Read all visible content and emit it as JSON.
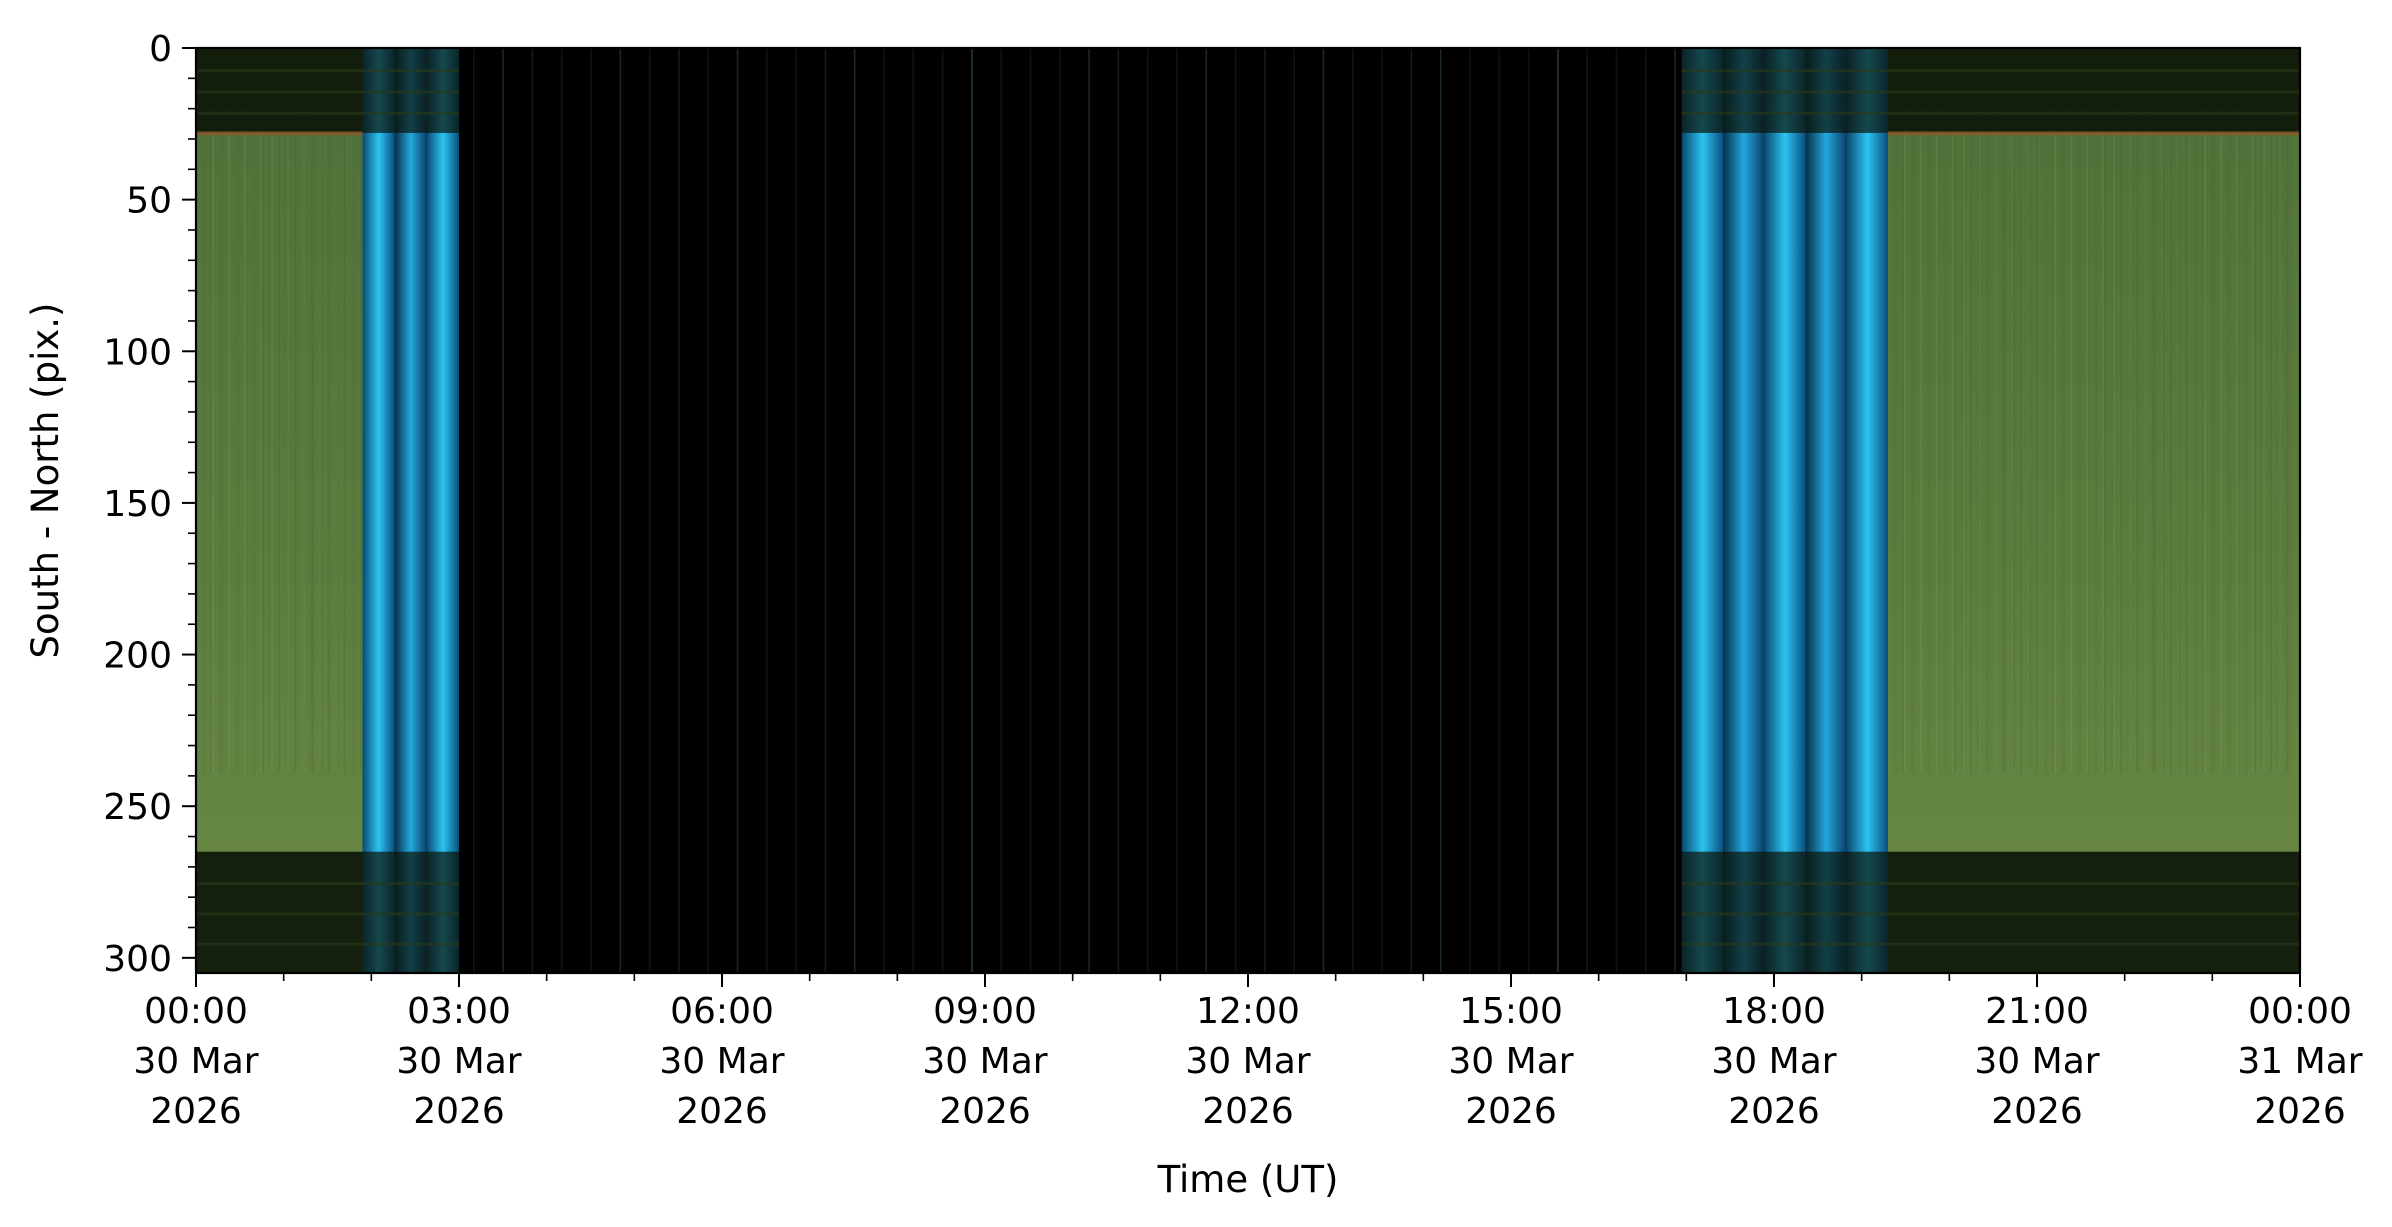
{
  "chart_data": {
    "type": "heatmap",
    "title": "",
    "xlabel": "Time (UT)",
    "ylabel": "South - North (pix.)",
    "xlim": [
      "2026-03-30T00:00",
      "2026-03-31T00:00"
    ],
    "ylim": [
      305,
      0
    ],
    "x_ticks": [
      {
        "time": "2026-03-30T00:00",
        "line1": "00:00",
        "line2": "30 Mar",
        "line3": "2026"
      },
      {
        "time": "2026-03-30T03:00",
        "line1": "03:00",
        "line2": "30 Mar",
        "line3": "2026"
      },
      {
        "time": "2026-03-30T06:00",
        "line1": "06:00",
        "line2": "30 Mar",
        "line3": "2026"
      },
      {
        "time": "2026-03-30T09:00",
        "line1": "09:00",
        "line2": "30 Mar",
        "line3": "2026"
      },
      {
        "time": "2026-03-30T12:00",
        "line1": "12:00",
        "line2": "30 Mar",
        "line3": "2026"
      },
      {
        "time": "2026-03-30T15:00",
        "line1": "15:00",
        "line2": "30 Mar",
        "line3": "2026"
      },
      {
        "time": "2026-03-30T18:00",
        "line1": "18:00",
        "line2": "30 Mar",
        "line3": "2026"
      },
      {
        "time": "2026-03-30T21:00",
        "line1": "21:00",
        "line2": "30 Mar",
        "line3": "2026"
      },
      {
        "time": "2026-03-31T00:00",
        "line1": "00:00",
        "line2": "31 Mar",
        "line3": "2026"
      }
    ],
    "y_ticks": [
      {
        "value": 0,
        "label": "0"
      },
      {
        "value": 50,
        "label": "50"
      },
      {
        "value": 100,
        "label": "100"
      },
      {
        "value": 150,
        "label": "150"
      },
      {
        "value": 200,
        "label": "200"
      },
      {
        "value": 250,
        "label": "250"
      },
      {
        "value": 300,
        "label": "300"
      }
    ],
    "colors": {
      "night_green": "#5a7a3e",
      "twilight_blue": "#1f9ad0",
      "day_black": "#000000",
      "band_dark": "#0c1408",
      "horizon_orange": "#8a5a2a"
    },
    "regions": [
      {
        "start_hour": 0.0,
        "end_hour": 1.9,
        "kind": "night"
      },
      {
        "start_hour": 1.9,
        "end_hour": 3.0,
        "kind": "twilight"
      },
      {
        "start_hour": 3.0,
        "end_hour": 16.95,
        "kind": "day"
      },
      {
        "start_hour": 16.95,
        "end_hour": 19.3,
        "kind": "twilight"
      },
      {
        "start_hour": 19.3,
        "end_hour": 24.0,
        "kind": "night"
      }
    ],
    "dark_bands_pix": [
      [
        0,
        28
      ],
      [
        265,
        305
      ]
    ]
  }
}
